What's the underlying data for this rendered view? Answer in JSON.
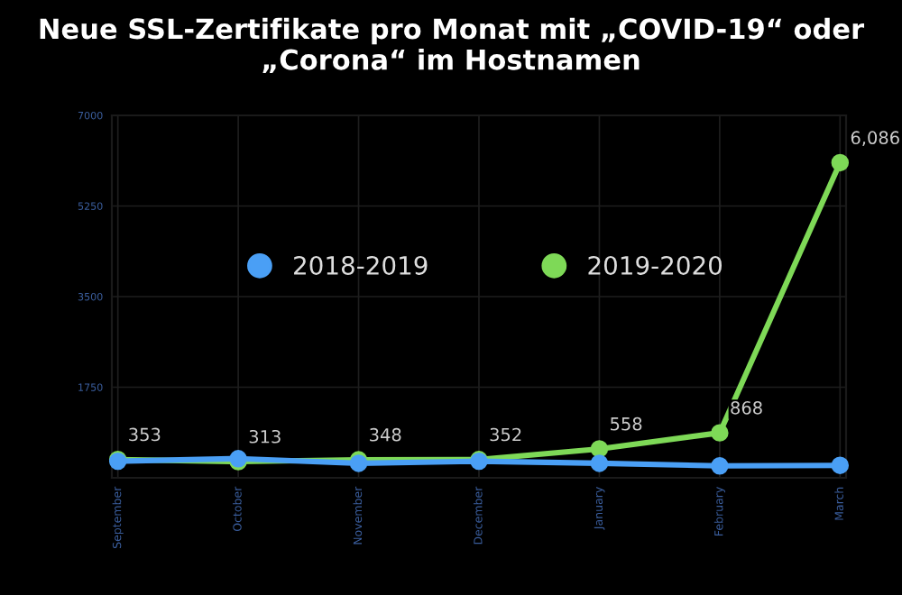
{
  "chart_data": {
    "type": "line",
    "title": "Neue SSL-Zertifikate pro Monat mit „COVID-19“ oder „Corona“ im Hostnamen",
    "categories": [
      "September",
      "October",
      "November",
      "December",
      "January",
      "February",
      "March"
    ],
    "series": [
      {
        "name": "2018-2019",
        "color": "#4a9ff5",
        "values": [
          320,
          370,
          280,
          320,
          280,
          230,
          240
        ]
      },
      {
        "name": "2019-2020",
        "color": "#7ed957",
        "values": [
          353,
          313,
          348,
          352,
          558,
          868,
          6086
        ],
        "value_labels": [
          "353",
          "313",
          "348",
          "352",
          "558",
          "868",
          "6,086"
        ]
      }
    ],
    "ylim": [
      0,
      7000
    ],
    "yticks": [
      1750,
      3500,
      5250,
      7000
    ],
    "grid": true,
    "legend": "center",
    "marker": "circle",
    "line_style": "solid"
  }
}
